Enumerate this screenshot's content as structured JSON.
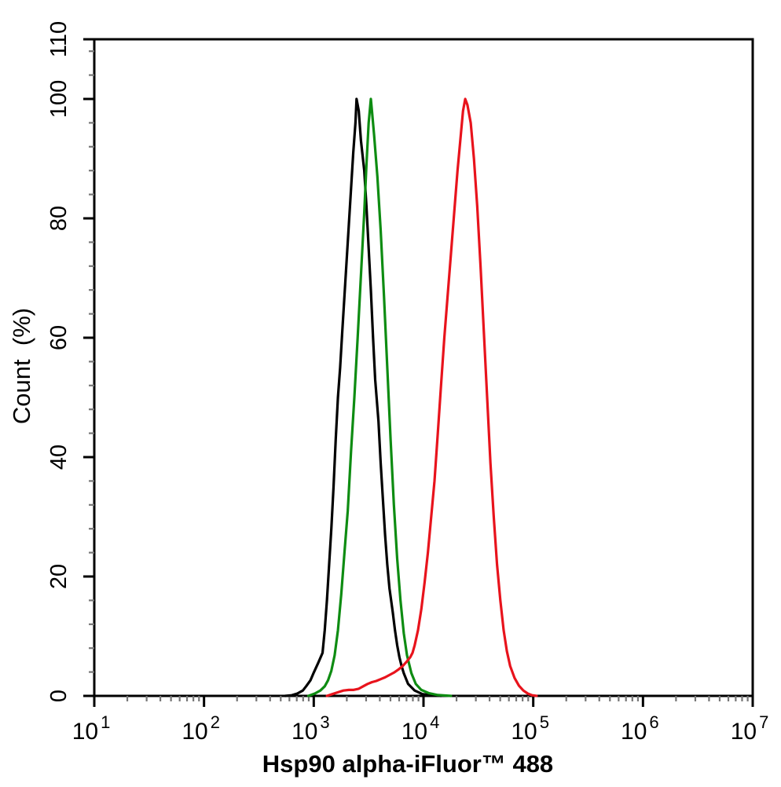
{
  "figure": {
    "background": "#ffffff",
    "plot_border_color": "#000000",
    "x_axis": {
      "title": "Hsp90 alpha-iFluor™ 488",
      "scale": "log10",
      "mantissa_base": "10",
      "major_tick_exponents": [
        1,
        2,
        3,
        4,
        5,
        6,
        7
      ],
      "minor_tick_mantissas": [
        2,
        3,
        4,
        5,
        6,
        7,
        8,
        9
      ]
    },
    "y_axis": {
      "title": "Count  (%)",
      "range": [
        0,
        110
      ],
      "major_tick_values": [
        0,
        20,
        40,
        60,
        80,
        100,
        110
      ],
      "major_tick_labels": [
        "0",
        "20",
        "40",
        "60",
        "80",
        "100",
        "110"
      ],
      "minor_tick_step": 4
    }
  },
  "chart_data": {
    "type": "line",
    "subtype": "flow-cytometry-histogram",
    "title": "",
    "xlabel": "Hsp90 alpha-iFluor™ 488",
    "ylabel": "Count  (%)",
    "x_scale": "log10",
    "x_range_log10": [
      1,
      7
    ],
    "ylim": [
      0,
      110
    ],
    "grid": false,
    "legend": "none",
    "series": [
      {
        "name": "black-curve",
        "color": "#000000",
        "line_width": 3.2,
        "points_log10x_percent": [
          [
            2.74,
            0
          ],
          [
            2.8,
            0.1
          ],
          [
            2.85,
            0.4
          ],
          [
            2.9,
            0.9
          ],
          [
            2.93,
            1.6
          ],
          [
            2.97,
            2.6
          ],
          [
            3.0,
            3.9
          ],
          [
            3.04,
            5.5
          ],
          [
            3.08,
            7.2
          ],
          [
            3.1,
            11
          ],
          [
            3.12,
            16
          ],
          [
            3.14,
            22
          ],
          [
            3.16,
            28
          ],
          [
            3.18,
            35
          ],
          [
            3.2,
            43
          ],
          [
            3.22,
            50
          ],
          [
            3.24,
            55
          ],
          [
            3.26,
            61
          ],
          [
            3.28,
            67
          ],
          [
            3.3,
            73
          ],
          [
            3.32,
            79
          ],
          [
            3.34,
            85
          ],
          [
            3.36,
            91
          ],
          [
            3.38,
            96
          ],
          [
            3.39,
            100
          ],
          [
            3.41,
            98
          ],
          [
            3.43,
            93
          ],
          [
            3.46,
            88
          ],
          [
            3.48,
            82
          ],
          [
            3.5,
            75
          ],
          [
            3.52,
            68
          ],
          [
            3.54,
            60
          ],
          [
            3.56,
            53
          ],
          [
            3.59,
            46
          ],
          [
            3.61,
            39
          ],
          [
            3.63,
            33
          ],
          [
            3.65,
            27
          ],
          [
            3.67,
            22
          ],
          [
            3.69,
            18
          ],
          [
            3.72,
            14
          ],
          [
            3.74,
            11
          ],
          [
            3.76,
            8.5
          ],
          [
            3.78,
            6.5
          ],
          [
            3.8,
            5
          ],
          [
            3.82,
            3.8
          ],
          [
            3.86,
            2
          ],
          [
            3.92,
            0.9
          ],
          [
            3.99,
            0.3
          ],
          [
            4.08,
            0.1
          ],
          [
            4.16,
            0
          ]
        ]
      },
      {
        "name": "green-curve",
        "color": "#0e8c12",
        "line_width": 3.2,
        "points_log10x_percent": [
          [
            2.95,
            0
          ],
          [
            3.01,
            0.4
          ],
          [
            3.06,
            0.9
          ],
          [
            3.1,
            1.6
          ],
          [
            3.13,
            2.6
          ],
          [
            3.16,
            4.2
          ],
          [
            3.19,
            6.8
          ],
          [
            3.22,
            11
          ],
          [
            3.25,
            17
          ],
          [
            3.28,
            24
          ],
          [
            3.31,
            31
          ],
          [
            3.34,
            41
          ],
          [
            3.37,
            50
          ],
          [
            3.4,
            60
          ],
          [
            3.42,
            67
          ],
          [
            3.44,
            74
          ],
          [
            3.46,
            81
          ],
          [
            3.48,
            89
          ],
          [
            3.5,
            96
          ],
          [
            3.52,
            100
          ],
          [
            3.53,
            98
          ],
          [
            3.55,
            94
          ],
          [
            3.58,
            87
          ],
          [
            3.61,
            78
          ],
          [
            3.64,
            67
          ],
          [
            3.67,
            55
          ],
          [
            3.7,
            43
          ],
          [
            3.73,
            32
          ],
          [
            3.76,
            23
          ],
          [
            3.79,
            16
          ],
          [
            3.82,
            10.5
          ],
          [
            3.85,
            6.8
          ],
          [
            3.89,
            3.8
          ],
          [
            3.93,
            2
          ],
          [
            3.98,
            1
          ],
          [
            4.05,
            0.45
          ],
          [
            4.13,
            0.15
          ],
          [
            4.25,
            0
          ]
        ]
      },
      {
        "name": "red-curve",
        "color": "#e8131c",
        "line_width": 3.2,
        "points_log10x_percent": [
          [
            3.12,
            0
          ],
          [
            3.17,
            0.3
          ],
          [
            3.22,
            0.6
          ],
          [
            3.27,
            0.9
          ],
          [
            3.32,
            1
          ],
          [
            3.36,
            1
          ],
          [
            3.41,
            1.2
          ],
          [
            3.45,
            1.6
          ],
          [
            3.49,
            2
          ],
          [
            3.53,
            2.3
          ],
          [
            3.57,
            2.5
          ],
          [
            3.61,
            2.8
          ],
          [
            3.65,
            3.1
          ],
          [
            3.69,
            3.5
          ],
          [
            3.73,
            3.9
          ],
          [
            3.77,
            4.4
          ],
          [
            3.81,
            5
          ],
          [
            3.85,
            5.8
          ],
          [
            3.88,
            6.5
          ],
          [
            3.9,
            7.2
          ],
          [
            3.92,
            8.5
          ],
          [
            3.95,
            11
          ],
          [
            3.98,
            14.5
          ],
          [
            4.01,
            19
          ],
          [
            4.04,
            24
          ],
          [
            4.07,
            30
          ],
          [
            4.1,
            36
          ],
          [
            4.13,
            44
          ],
          [
            4.16,
            52
          ],
          [
            4.19,
            60
          ],
          [
            4.22,
            67
          ],
          [
            4.25,
            74
          ],
          [
            4.28,
            81
          ],
          [
            4.31,
            88
          ],
          [
            4.34,
            94
          ],
          [
            4.36,
            98
          ],
          [
            4.38,
            100
          ],
          [
            4.4,
            99
          ],
          [
            4.43,
            96
          ],
          [
            4.46,
            90
          ],
          [
            4.49,
            82
          ],
          [
            4.52,
            72
          ],
          [
            4.55,
            61
          ],
          [
            4.58,
            50
          ],
          [
            4.61,
            39
          ],
          [
            4.64,
            30
          ],
          [
            4.67,
            22
          ],
          [
            4.7,
            16
          ],
          [
            4.73,
            11
          ],
          [
            4.76,
            7.5
          ],
          [
            4.79,
            5
          ],
          [
            4.83,
            3
          ],
          [
            4.87,
            1.7
          ],
          [
            4.91,
            0.9
          ],
          [
            4.95,
            0.4
          ],
          [
            4.99,
            0.1
          ],
          [
            5.03,
            0
          ]
        ]
      }
    ]
  }
}
